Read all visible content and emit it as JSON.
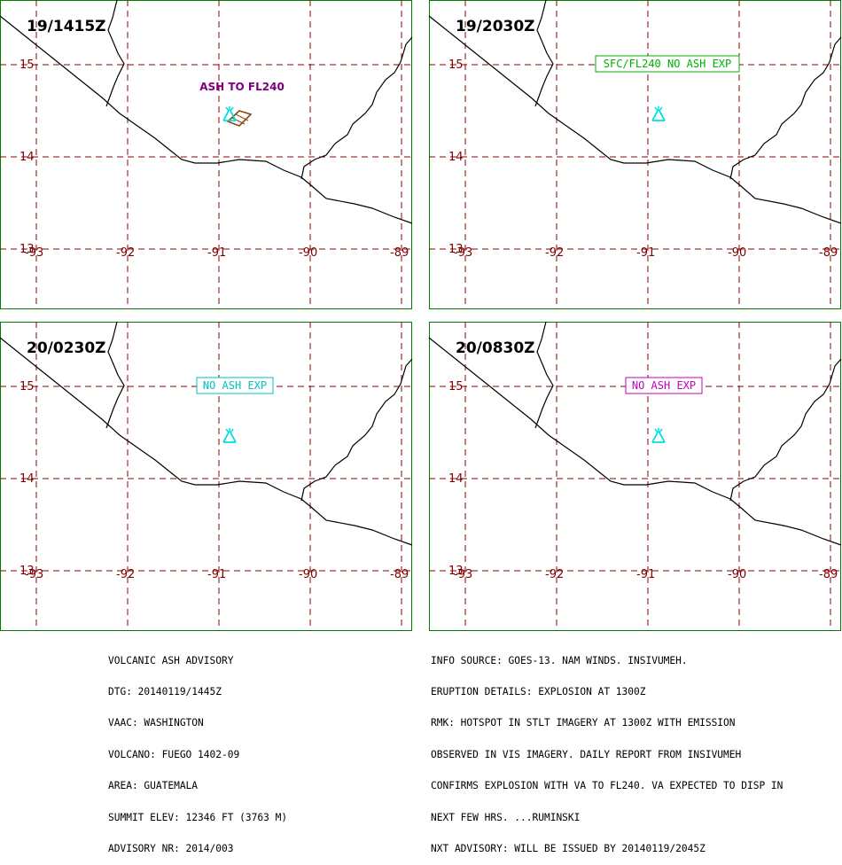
{
  "colors": {
    "frame": "#008000",
    "grid": "#8b0000",
    "axis_label": "#800000",
    "coast": "#000000",
    "volcano": "#00e0e0",
    "ash_polygon": "#8b4513",
    "label_purple": "#800080",
    "label_green": "#00b000",
    "label_cyan": "#00c0c0",
    "label_magenta": "#c000c0"
  },
  "panels": [
    {
      "time": "19/1415Z",
      "label": "ASH TO FL240",
      "label_style": "plain",
      "label_color": "#800080",
      "show_ash_polygon": true
    },
    {
      "time": "19/2030Z",
      "label": "SFC/FL240 NO ASH EXP",
      "label_style": "box",
      "label_color": "#00b000",
      "show_ash_polygon": false
    },
    {
      "time": "20/0230Z",
      "label": "NO ASH EXP",
      "label_style": "box",
      "label_color": "#00c0c0",
      "show_ash_polygon": false
    },
    {
      "time": "20/0830Z",
      "label": "NO ASH EXP",
      "label_style": "box",
      "label_color": "#c000c0",
      "show_ash_polygon": false
    }
  ],
  "map": {
    "lon_ticks": [
      "-93",
      "-92",
      "-91",
      "-90",
      "-89"
    ],
    "lat_ticks": [
      "15",
      "14",
      "13"
    ]
  },
  "advisory": {
    "left_lines": [
      "VOLCANIC ASH ADVISORY",
      "DTG: 20140119/1445Z",
      "VAAC: WASHINGTON",
      "VOLCANO: FUEGO 1402-09",
      "AREA: GUATEMALA",
      "SUMMIT ELEV: 12346 FT (3763 M)",
      "ADVISORY NR: 2014/003"
    ],
    "right_lines": [
      "INFO SOURCE: GOES-13. NAM WINDS. INSIVUMEH.",
      "ERUPTION DETAILS: EXPLOSION AT 1300Z",
      "RMK: HOTSPOT IN STLT IMAGERY AT 1300Z WITH EMISSION",
      "OBSERVED IN VIS IMAGERY. DAILY REPORT FROM INSIVUMEH",
      "CONFIRMS EXPLOSION WITH VA TO FL240. VA EXPECTED TO DISP IN",
      "NEXT FEW HRS. ...RUMINSKI",
      "NXT ADVISORY: WILL BE ISSUED BY 20140119/2045Z"
    ]
  }
}
